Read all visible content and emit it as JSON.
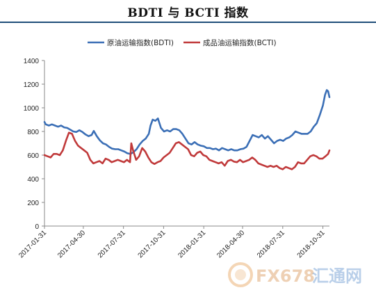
{
  "page_title": "BDTI 与 BCTI 指数",
  "watermark": {
    "fx_text": "FX678",
    "cn_text": "汇通网"
  },
  "chart_data": {
    "type": "line",
    "title": "BDTI 与 BCTI 指数",
    "xlabel": "",
    "ylabel": "",
    "ylim": [
      0,
      1400
    ],
    "yticks": [
      0,
      200,
      400,
      600,
      800,
      1000,
      1200,
      1400
    ],
    "xlim": [
      "2017-01-31",
      "2018-11-15"
    ],
    "xtick_labels": [
      "2017-01-31",
      "2017-04-30",
      "2017-07-31",
      "2017-10-31",
      "2018-01-31",
      "2018-04-30",
      "2018-07-31",
      "2018-10-31"
    ],
    "grid": false,
    "legend_position": "top-center",
    "series": [
      {
        "name": "原油运输指数(BDTI)",
        "color": "#3b6fb6",
        "points": [
          [
            "2017-01-31",
            880
          ],
          [
            "2017-02-03",
            860
          ],
          [
            "2017-02-10",
            850
          ],
          [
            "2017-02-17",
            860
          ],
          [
            "2017-02-24",
            850
          ],
          [
            "2017-03-03",
            840
          ],
          [
            "2017-03-10",
            850
          ],
          [
            "2017-03-17",
            835
          ],
          [
            "2017-03-24",
            830
          ],
          [
            "2017-03-31",
            815
          ],
          [
            "2017-04-07",
            800
          ],
          [
            "2017-04-14",
            795
          ],
          [
            "2017-04-21",
            810
          ],
          [
            "2017-04-28",
            795
          ],
          [
            "2017-05-05",
            775
          ],
          [
            "2017-05-12",
            760
          ],
          [
            "2017-05-19",
            770
          ],
          [
            "2017-05-24",
            805
          ],
          [
            "2017-05-31",
            760
          ],
          [
            "2017-06-07",
            725
          ],
          [
            "2017-06-14",
            700
          ],
          [
            "2017-06-21",
            690
          ],
          [
            "2017-06-28",
            670
          ],
          [
            "2017-07-05",
            655
          ],
          [
            "2017-07-12",
            650
          ],
          [
            "2017-07-19",
            650
          ],
          [
            "2017-07-26",
            640
          ],
          [
            "2017-08-02",
            630
          ],
          [
            "2017-08-09",
            615
          ],
          [
            "2017-08-16",
            610
          ],
          [
            "2017-08-23",
            625
          ],
          [
            "2017-08-30",
            650
          ],
          [
            "2017-09-06",
            690
          ],
          [
            "2017-09-13",
            720
          ],
          [
            "2017-09-20",
            740
          ],
          [
            "2017-09-27",
            780
          ],
          [
            "2017-10-01",
            850
          ],
          [
            "2017-10-06",
            900
          ],
          [
            "2017-10-12",
            890
          ],
          [
            "2017-10-18",
            910
          ],
          [
            "2017-10-25",
            830
          ],
          [
            "2017-11-01",
            800
          ],
          [
            "2017-11-08",
            810
          ],
          [
            "2017-11-15",
            800
          ],
          [
            "2017-11-22",
            820
          ],
          [
            "2017-11-29",
            820
          ],
          [
            "2017-12-06",
            810
          ],
          [
            "2017-12-13",
            780
          ],
          [
            "2017-12-20",
            740
          ],
          [
            "2017-12-27",
            700
          ],
          [
            "2018-01-03",
            690
          ],
          [
            "2018-01-10",
            710
          ],
          [
            "2018-01-17",
            690
          ],
          [
            "2018-01-24",
            680
          ],
          [
            "2018-01-31",
            675
          ],
          [
            "2018-02-07",
            660
          ],
          [
            "2018-02-14",
            660
          ],
          [
            "2018-02-21",
            650
          ],
          [
            "2018-02-28",
            655
          ],
          [
            "2018-03-07",
            640
          ],
          [
            "2018-03-14",
            660
          ],
          [
            "2018-03-21",
            650
          ],
          [
            "2018-03-28",
            640
          ],
          [
            "2018-04-04",
            650
          ],
          [
            "2018-04-11",
            640
          ],
          [
            "2018-04-18",
            640
          ],
          [
            "2018-04-25",
            650
          ],
          [
            "2018-05-02",
            655
          ],
          [
            "2018-05-09",
            670
          ],
          [
            "2018-05-16",
            720
          ],
          [
            "2018-05-23",
            770
          ],
          [
            "2018-05-30",
            760
          ],
          [
            "2018-06-06",
            750
          ],
          [
            "2018-06-13",
            770
          ],
          [
            "2018-06-20",
            740
          ],
          [
            "2018-06-27",
            760
          ],
          [
            "2018-07-04",
            730
          ],
          [
            "2018-07-11",
            700
          ],
          [
            "2018-07-18",
            720
          ],
          [
            "2018-07-25",
            730
          ],
          [
            "2018-08-01",
            720
          ],
          [
            "2018-08-08",
            740
          ],
          [
            "2018-08-15",
            750
          ],
          [
            "2018-08-22",
            770
          ],
          [
            "2018-08-29",
            800
          ],
          [
            "2018-09-05",
            790
          ],
          [
            "2018-09-12",
            780
          ],
          [
            "2018-09-19",
            780
          ],
          [
            "2018-09-26",
            780
          ],
          [
            "2018-10-03",
            800
          ],
          [
            "2018-10-10",
            840
          ],
          [
            "2018-10-17",
            870
          ],
          [
            "2018-10-24",
            940
          ],
          [
            "2018-10-31",
            1020
          ],
          [
            "2018-11-05",
            1110
          ],
          [
            "2018-11-09",
            1150
          ],
          [
            "2018-11-12",
            1140
          ],
          [
            "2018-11-15",
            1090
          ]
        ]
      },
      {
        "name": "成品油运输指数(BCTI)",
        "color": "#c0393a",
        "points": [
          [
            "2017-01-31",
            600
          ],
          [
            "2017-02-07",
            590
          ],
          [
            "2017-02-14",
            580
          ],
          [
            "2017-02-21",
            610
          ],
          [
            "2017-02-28",
            610
          ],
          [
            "2017-03-07",
            600
          ],
          [
            "2017-03-14",
            640
          ],
          [
            "2017-03-21",
            720
          ],
          [
            "2017-03-28",
            790
          ],
          [
            "2017-04-04",
            780
          ],
          [
            "2017-04-11",
            720
          ],
          [
            "2017-04-18",
            680
          ],
          [
            "2017-04-25",
            660
          ],
          [
            "2017-05-02",
            640
          ],
          [
            "2017-05-09",
            620
          ],
          [
            "2017-05-16",
            560
          ],
          [
            "2017-05-23",
            530
          ],
          [
            "2017-05-30",
            540
          ],
          [
            "2017-06-06",
            550
          ],
          [
            "2017-06-13",
            530
          ],
          [
            "2017-06-20",
            570
          ],
          [
            "2017-06-27",
            560
          ],
          [
            "2017-07-04",
            540
          ],
          [
            "2017-07-11",
            550
          ],
          [
            "2017-07-18",
            560
          ],
          [
            "2017-07-25",
            550
          ],
          [
            "2017-08-01",
            540
          ],
          [
            "2017-08-08",
            560
          ],
          [
            "2017-08-15",
            540
          ],
          [
            "2017-08-18",
            700
          ],
          [
            "2017-08-22",
            640
          ],
          [
            "2017-08-29",
            560
          ],
          [
            "2017-09-05",
            590
          ],
          [
            "2017-09-12",
            660
          ],
          [
            "2017-09-19",
            630
          ],
          [
            "2017-09-26",
            580
          ],
          [
            "2017-10-03",
            540
          ],
          [
            "2017-10-10",
            525
          ],
          [
            "2017-10-17",
            540
          ],
          [
            "2017-10-24",
            550
          ],
          [
            "2017-10-31",
            580
          ],
          [
            "2017-11-07",
            600
          ],
          [
            "2017-11-14",
            620
          ],
          [
            "2017-11-21",
            660
          ],
          [
            "2017-11-28",
            700
          ],
          [
            "2017-12-05",
            710
          ],
          [
            "2017-12-12",
            690
          ],
          [
            "2017-12-19",
            670
          ],
          [
            "2017-12-26",
            650
          ],
          [
            "2018-01-02",
            600
          ],
          [
            "2018-01-09",
            590
          ],
          [
            "2018-01-16",
            620
          ],
          [
            "2018-01-23",
            630
          ],
          [
            "2018-01-30",
            600
          ],
          [
            "2018-02-06",
            590
          ],
          [
            "2018-02-13",
            560
          ],
          [
            "2018-02-20",
            550
          ],
          [
            "2018-02-27",
            540
          ],
          [
            "2018-03-06",
            530
          ],
          [
            "2018-03-13",
            540
          ],
          [
            "2018-03-20",
            510
          ],
          [
            "2018-03-27",
            550
          ],
          [
            "2018-04-03",
            560
          ],
          [
            "2018-04-10",
            545
          ],
          [
            "2018-04-17",
            540
          ],
          [
            "2018-04-24",
            560
          ],
          [
            "2018-05-01",
            540
          ],
          [
            "2018-05-08",
            550
          ],
          [
            "2018-05-15",
            560
          ],
          [
            "2018-05-22",
            580
          ],
          [
            "2018-05-29",
            560
          ],
          [
            "2018-06-05",
            530
          ],
          [
            "2018-06-12",
            520
          ],
          [
            "2018-06-19",
            510
          ],
          [
            "2018-06-26",
            500
          ],
          [
            "2018-07-03",
            510
          ],
          [
            "2018-07-10",
            500
          ],
          [
            "2018-07-17",
            510
          ],
          [
            "2018-07-24",
            490
          ],
          [
            "2018-07-31",
            480
          ],
          [
            "2018-08-07",
            500
          ],
          [
            "2018-08-14",
            490
          ],
          [
            "2018-08-21",
            480
          ],
          [
            "2018-08-28",
            500
          ],
          [
            "2018-09-04",
            540
          ],
          [
            "2018-09-11",
            530
          ],
          [
            "2018-09-18",
            530
          ],
          [
            "2018-09-25",
            560
          ],
          [
            "2018-10-02",
            590
          ],
          [
            "2018-10-09",
            600
          ],
          [
            "2018-10-16",
            590
          ],
          [
            "2018-10-23",
            570
          ],
          [
            "2018-10-30",
            570
          ],
          [
            "2018-11-06",
            590
          ],
          [
            "2018-11-12",
            610
          ],
          [
            "2018-11-15",
            640
          ]
        ]
      }
    ]
  }
}
